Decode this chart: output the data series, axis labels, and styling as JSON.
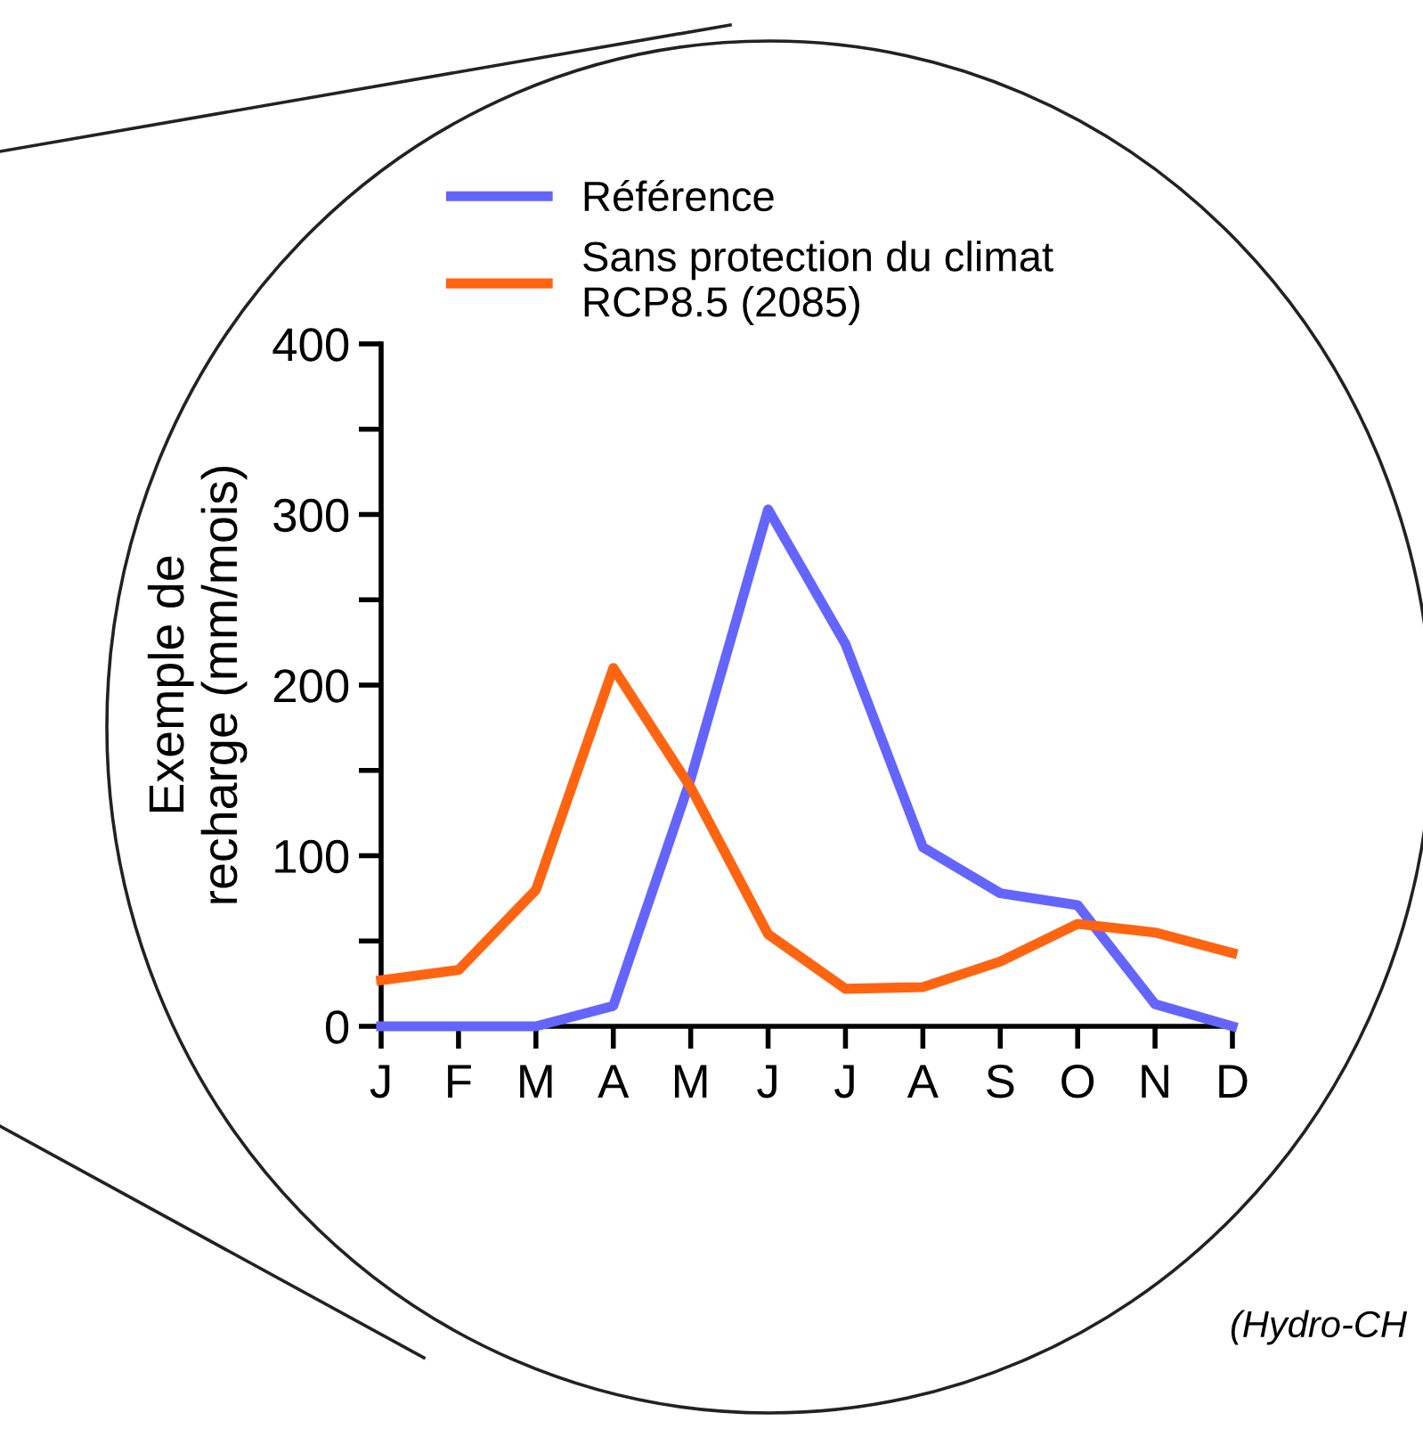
{
  "chart_data": {
    "type": "line",
    "ylabel": "Exemple de\nrecharge (mm/mois)",
    "categories": [
      "J",
      "F",
      "M",
      "A",
      "M",
      "J",
      "J",
      "A",
      "S",
      "O",
      "N",
      "D"
    ],
    "series": [
      {
        "name": "Référence",
        "color": "#6464ff",
        "values": [
          0,
          0,
          0,
          12,
          145,
          303,
          224,
          105,
          78,
          71,
          13,
          0
        ]
      },
      {
        "name": "Sans protection du climat\nRCP8.5 (2085)",
        "color": "#ff6410",
        "values": [
          27,
          33,
          80,
          210,
          140,
          54,
          22,
          23,
          38,
          60,
          55,
          43
        ]
      }
    ],
    "ylim": [
      0,
      400
    ],
    "yticks": [
      0,
      {
        "value": 50,
        "label": null
      },
      100,
      {
        "value": 150,
        "label": null
      },
      200,
      {
        "value": 250,
        "label": null
      },
      300,
      {
        "value": 350,
        "label": null
      },
      400
    ],
    "legend": "top",
    "grid": false,
    "marker": "none",
    "line_style": "solid",
    "annotations": [
      "(Hydro-CH"
    ]
  }
}
